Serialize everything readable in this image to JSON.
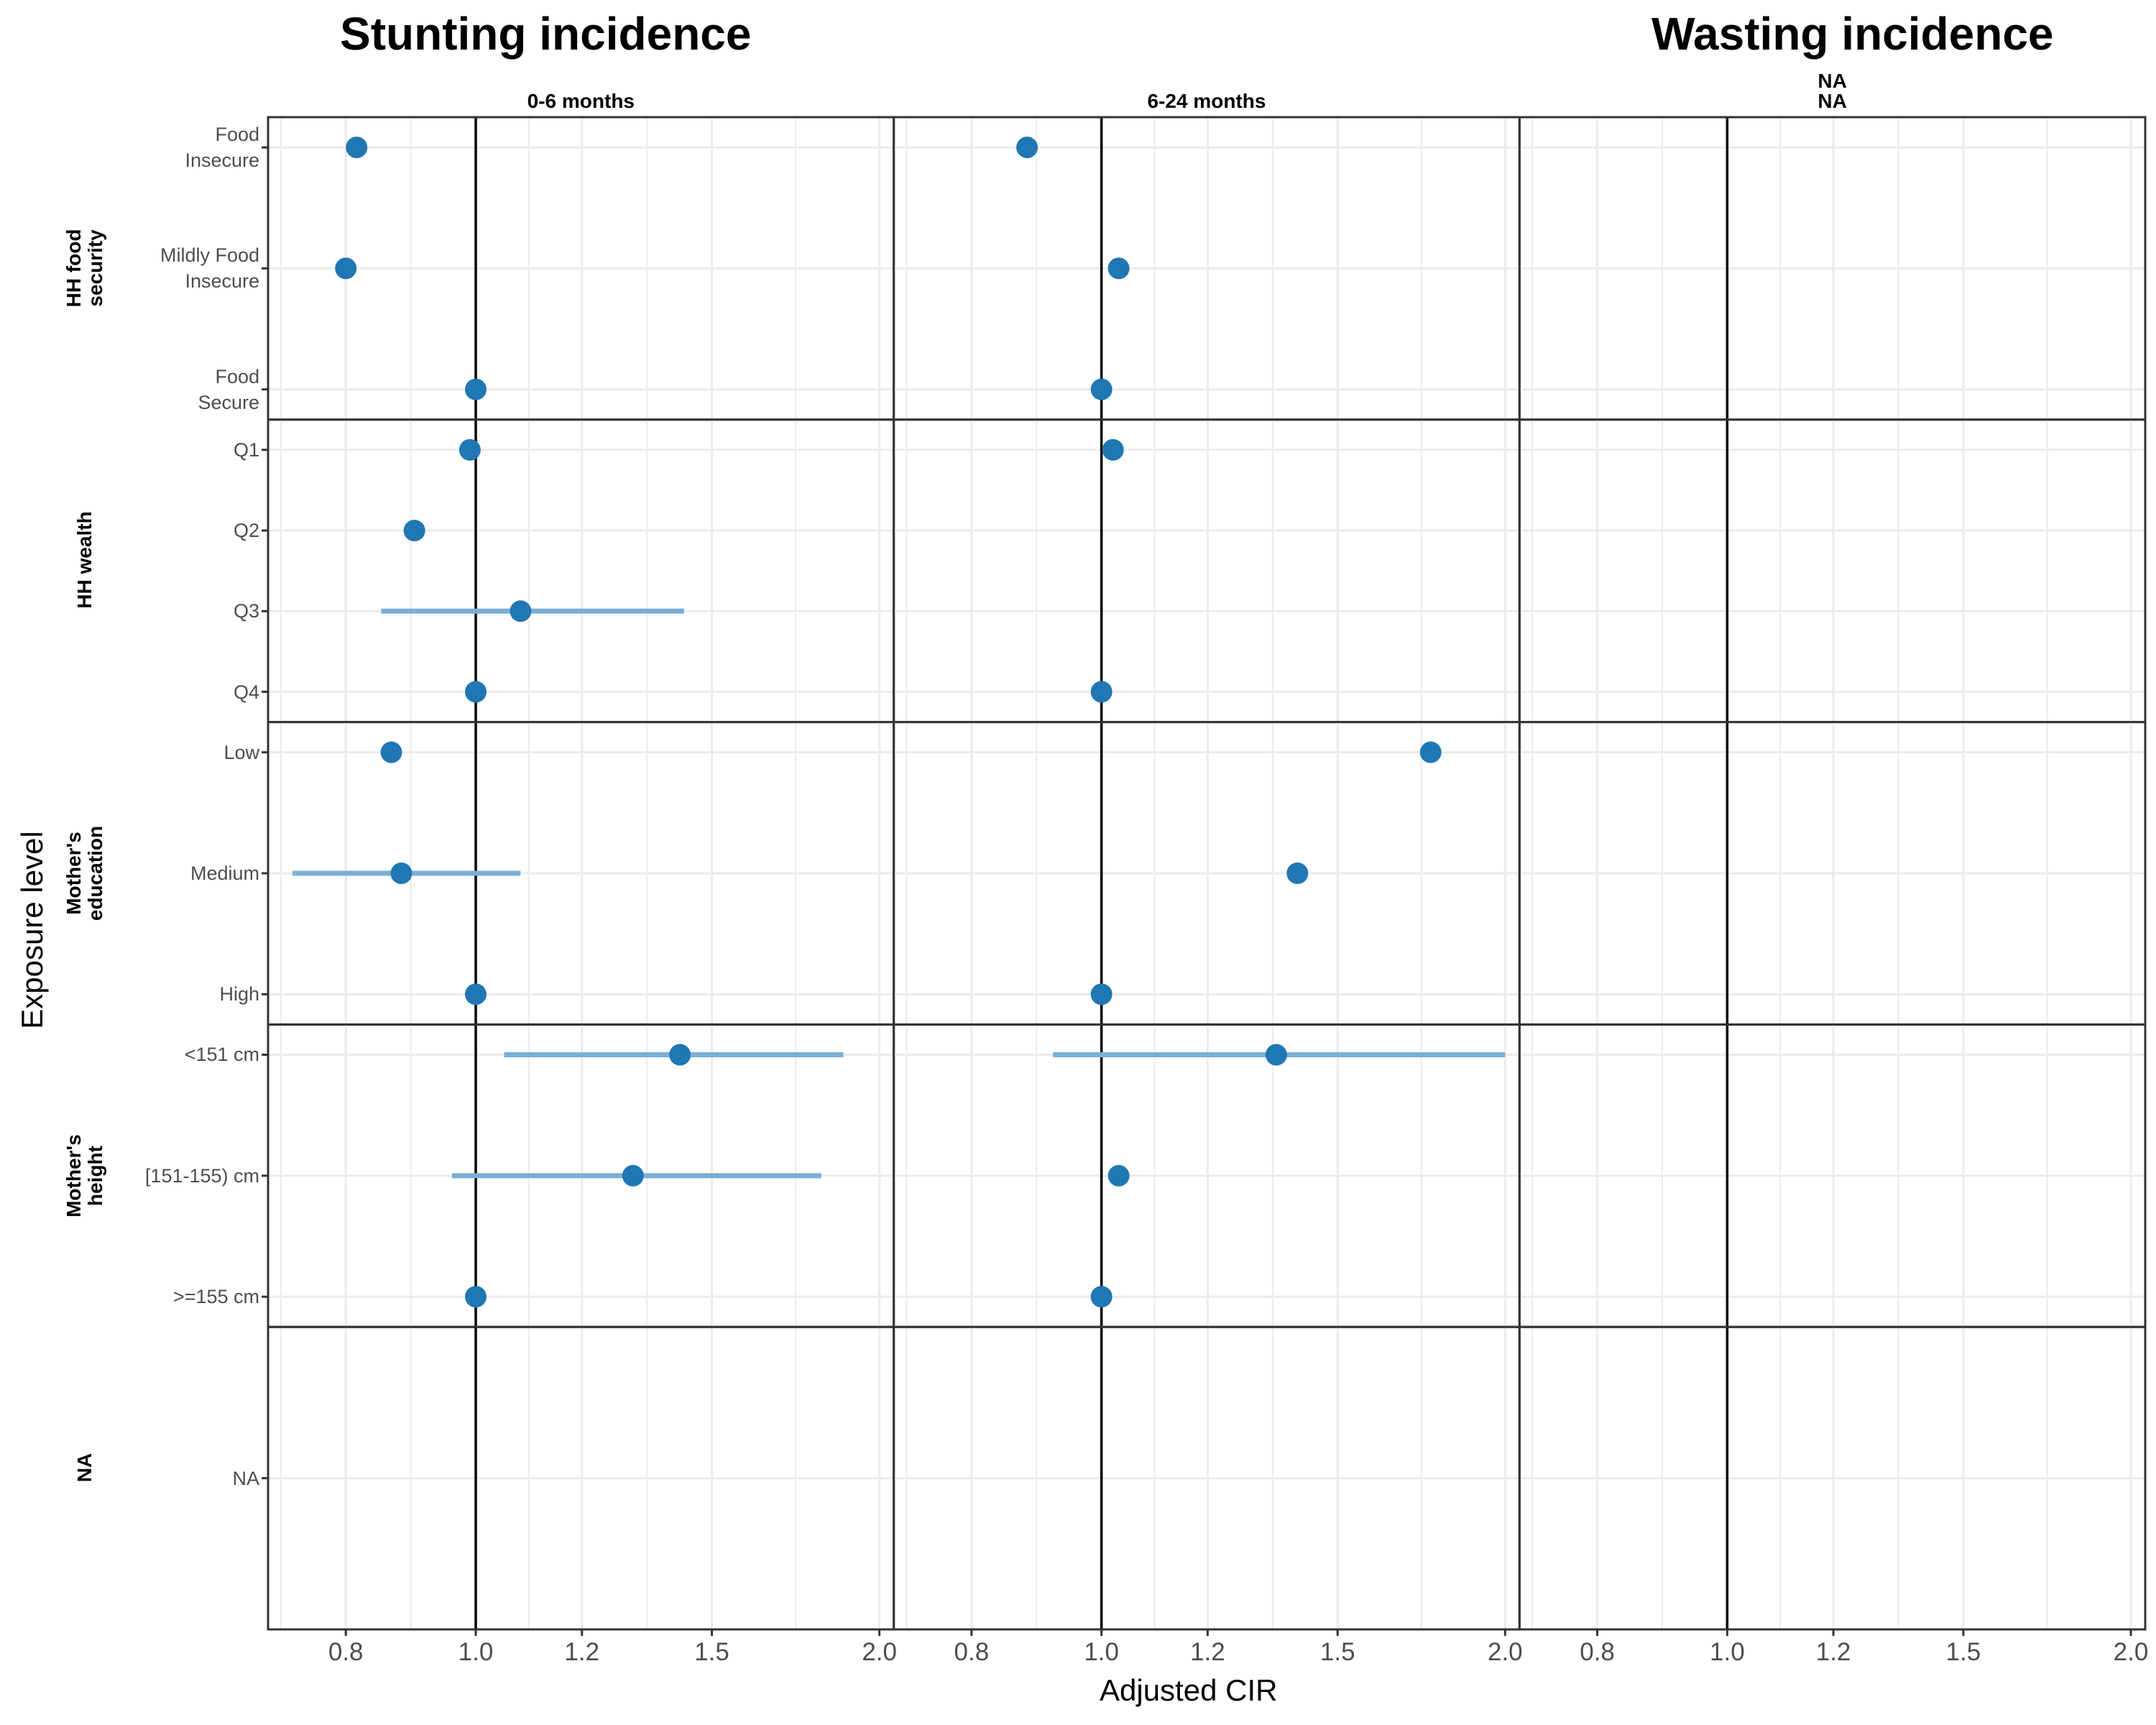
{
  "titles": {
    "left": "Stunting incidence",
    "right": "Wasting incidence"
  },
  "x_axis_title": "Adjusted CIR",
  "y_axis_title": "Exposure level",
  "colors": {
    "point": "#1f77b4",
    "ci": "#7aaed6",
    "refline": "#000000",
    "grid": "#ebebeb",
    "border": "#333333"
  },
  "chart_data": {
    "type": "scatter",
    "x_scale": "log",
    "xlim": [
      0.7,
      2.05
    ],
    "x_ticks": [
      {
        "value": 0.8,
        "label": "0.8"
      },
      {
        "value": 1.0,
        "label": "1.0"
      },
      {
        "value": 1.2,
        "label": "1.2"
      },
      {
        "value": 1.5,
        "label": "1.5"
      },
      {
        "value": 2.0,
        "label": "2.0"
      }
    ],
    "reference_value": 1.0,
    "columns": [
      {
        "label": "0-6 months"
      },
      {
        "label": "6-24 months"
      },
      {
        "label": "NA\nNA"
      }
    ],
    "rows": [
      {
        "label": "HH food\nsecurity",
        "levels": [
          "Food\nInsecure",
          "Mildly Food\nInsecure",
          "Food\nSecure"
        ],
        "points": [
          [
            {
              "est": 0.815
            },
            {
              "est": 0.8
            },
            {
              "est": 1.0
            }
          ],
          [
            {
              "est": 0.88
            },
            {
              "est": 1.03
            },
            {
              "est": 1.0
            }
          ],
          [
            null,
            null,
            null
          ]
        ]
      },
      {
        "label": "HH wealth",
        "levels": [
          "Q1",
          "Q2",
          "Q3",
          "Q4"
        ],
        "points": [
          [
            {
              "est": 0.99
            },
            {
              "est": 0.9
            },
            {
              "est": 1.08,
              "lo": 0.85,
              "hi": 1.43
            },
            {
              "est": 1.0
            }
          ],
          [
            {
              "est": 1.02
            },
            null,
            null,
            {
              "est": 1.0
            }
          ],
          [
            null,
            null,
            null,
            null
          ]
        ]
      },
      {
        "label": "Mother's\neducation",
        "levels": [
          "Low",
          "Medium",
          "High"
        ],
        "points": [
          [
            {
              "est": 0.865
            },
            {
              "est": 0.88,
              "lo": 0.73,
              "hi": 1.08
            },
            {
              "est": 1.0
            }
          ],
          [
            {
              "est": 1.76
            },
            {
              "est": 1.4
            },
            {
              "est": 1.0
            }
          ],
          [
            null,
            null,
            null
          ]
        ]
      },
      {
        "label": "Mother's\nheight",
        "levels": [
          "<151 cm",
          "[151-155) cm",
          ">=155 cm"
        ],
        "points": [
          [
            {
              "est": 1.42,
              "lo": 1.05,
              "hi": 1.88
            },
            {
              "est": 1.31,
              "lo": 0.96,
              "hi": 1.81
            },
            {
              "est": 1.0
            }
          ],
          [
            {
              "est": 1.35,
              "lo": 0.92,
              "hi": 2.0
            },
            {
              "est": 1.03
            },
            {
              "est": 1.0
            }
          ],
          [
            null,
            null,
            null
          ]
        ]
      },
      {
        "label": "NA",
        "levels": [
          "NA"
        ],
        "points": [
          [
            null
          ],
          [
            null
          ],
          [
            null
          ]
        ]
      }
    ]
  }
}
